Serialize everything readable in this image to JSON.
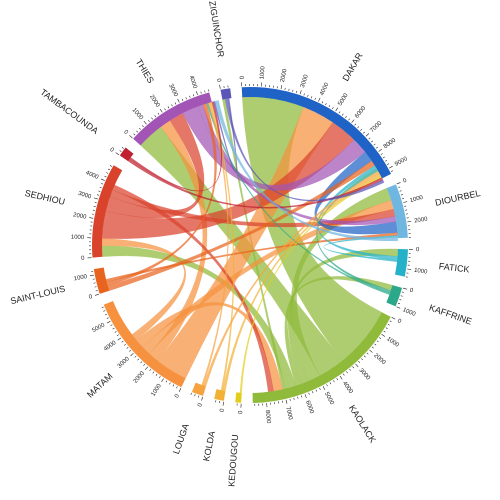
{
  "chart_data": {
    "type": "chord",
    "tick_step": 1000,
    "regions": [
      {
        "name": "DAKAR",
        "total": 9300,
        "color": "#1f63c6"
      },
      {
        "name": "DIOURBEL",
        "total": 2800,
        "color": "#6fb6e0"
      },
      {
        "name": "FATICK",
        "total": 1400,
        "color": "#25b1c8"
      },
      {
        "name": "KAFFRINE",
        "total": 1000,
        "color": "#2aa889"
      },
      {
        "name": "KAOLACK",
        "total": 8700,
        "color": "#8fba3a"
      },
      {
        "name": "KEDOUGOU",
        "total": 300,
        "color": "#e3cd1b"
      },
      {
        "name": "KOLDA",
        "total": 500,
        "color": "#f2b134"
      },
      {
        "name": "LOUGA",
        "total": 600,
        "color": "#f6a33f"
      },
      {
        "name": "MATAM",
        "total": 5900,
        "color": "#f5913f"
      },
      {
        "name": "SAINT-LOUIS",
        "total": 1300,
        "color": "#e8641e"
      },
      {
        "name": "SEDHIOU",
        "total": 4900,
        "color": "#d9432c"
      },
      {
        "name": "TAMBACOUNDA",
        "total": 500,
        "color": "#c02030"
      },
      {
        "name": "THIES",
        "total": 4600,
        "color": "#a255b4"
      },
      {
        "name": "ZIGUINCHOR",
        "total": 500,
        "color": "#5a55b6"
      }
    ],
    "flows": [
      {
        "source": "KAOLACK",
        "target": "DAKAR",
        "value": 3400
      },
      {
        "source": "KAOLACK",
        "target": "THIES",
        "value": 1500
      },
      {
        "source": "KAOLACK",
        "target": "DIOURBEL",
        "value": 700
      },
      {
        "source": "KAOLACK",
        "target": "FATICK",
        "value": 400
      },
      {
        "source": "KAOLACK",
        "target": "KAFFRINE",
        "value": 300
      },
      {
        "source": "KAOLACK",
        "target": "SEDHIOU",
        "value": 600
      },
      {
        "source": "KAOLACK",
        "target": "ZIGUINCHOR",
        "value": 150
      },
      {
        "source": "MATAM",
        "target": "DAKAR",
        "value": 1800
      },
      {
        "source": "MATAM",
        "target": "THIES",
        "value": 600
      },
      {
        "source": "MATAM",
        "target": "DIOURBEL",
        "value": 500
      },
      {
        "source": "MATAM",
        "target": "KAOLACK",
        "value": 500
      },
      {
        "source": "MATAM",
        "target": "SEDHIOU",
        "value": 400
      },
      {
        "source": "SEDHIOU",
        "target": "DAKAR",
        "value": 1500
      },
      {
        "source": "SEDHIOU",
        "target": "THIES",
        "value": 800
      },
      {
        "source": "SEDHIOU",
        "target": "DIOURBEL",
        "value": 400
      },
      {
        "source": "SEDHIOU",
        "target": "KAOLACK",
        "value": 300
      },
      {
        "source": "THIES",
        "target": "DAKAR",
        "value": 900
      },
      {
        "source": "THIES",
        "target": "DIOURBEL",
        "value": 300
      },
      {
        "source": "DAKAR",
        "target": "DIOURBEL",
        "value": 600
      },
      {
        "source": "SAINT-LOUIS",
        "target": "DAKAR",
        "value": 300
      },
      {
        "source": "SAINT-LOUIS",
        "target": "THIES",
        "value": 200
      },
      {
        "source": "SAINT-LOUIS",
        "target": "DIOURBEL",
        "value": 150
      },
      {
        "source": "FATICK",
        "target": "DAKAR",
        "value": 200
      },
      {
        "source": "FATICK",
        "target": "DIOURBEL",
        "value": 100
      },
      {
        "source": "KAFFRINE",
        "target": "DAKAR",
        "value": 150
      },
      {
        "source": "KAFFRINE",
        "target": "THIES",
        "value": 100
      },
      {
        "source": "LOUGA",
        "target": "DAKAR",
        "value": 150
      },
      {
        "source": "LOUGA",
        "target": "THIES",
        "value": 100
      },
      {
        "source": "KOLDA",
        "target": "DAKAR",
        "value": 150
      },
      {
        "source": "KOLDA",
        "target": "THIES",
        "value": 100
      },
      {
        "source": "KEDOUGOU",
        "target": "DAKAR",
        "value": 100
      },
      {
        "source": "TAMBACOUNDA",
        "target": "DAKAR",
        "value": 150
      },
      {
        "source": "TAMBACOUNDA",
        "target": "THIES",
        "value": 100
      },
      {
        "source": "ZIGUINCHOR",
        "target": "DAKAR",
        "value": 150
      },
      {
        "source": "ZIGUINCHOR",
        "target": "THIES",
        "value": 80
      },
      {
        "source": "DIOURBEL",
        "target": "THIES",
        "value": 200
      }
    ]
  }
}
